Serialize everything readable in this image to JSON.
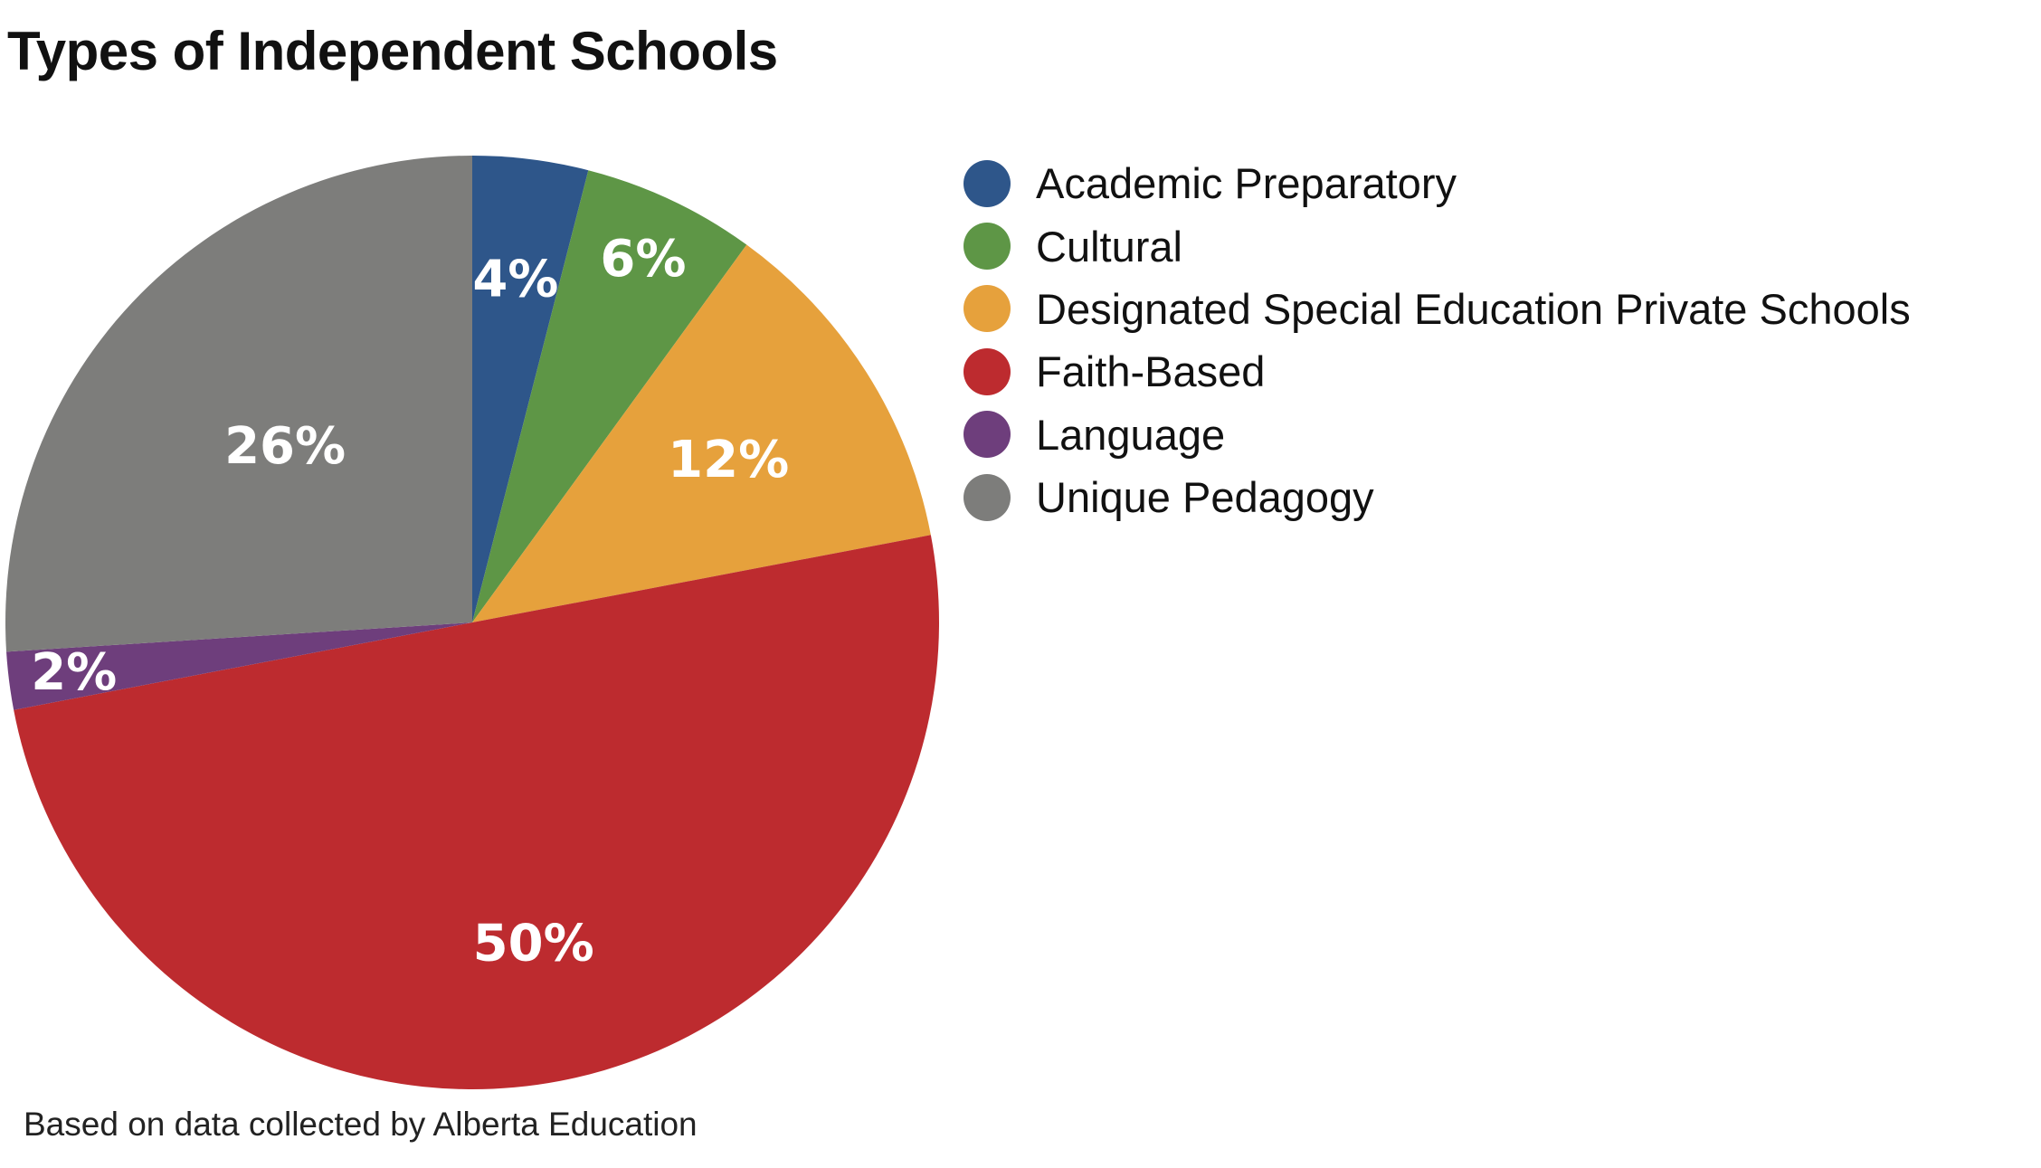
{
  "chart_data": {
    "type": "pie",
    "title": "Types of Independent Schools",
    "note": "Based on data collected by Alberta Education",
    "start_angle_deg": 0,
    "direction": "clockwise",
    "slices": [
      {
        "label": "Academic Preparatory",
        "value": 4,
        "display": "4%",
        "color": "#2e568a"
      },
      {
        "label": "Cultural",
        "value": 6,
        "display": "6%",
        "color": "#5e9646"
      },
      {
        "label": "Designated Special Education Private Schools",
        "value": 12,
        "display": "12%",
        "color": "#e6a13c"
      },
      {
        "label": "Faith-Based",
        "value": 50,
        "display": "50%",
        "color": "#bd2b2f"
      },
      {
        "label": "Language",
        "value": 2,
        "display": "2%",
        "color": "#6e3e7c"
      },
      {
        "label": "Unique Pedagogy",
        "value": 26,
        "display": "26%",
        "color": "#7d7d7b"
      }
    ],
    "legend_position": "right"
  }
}
